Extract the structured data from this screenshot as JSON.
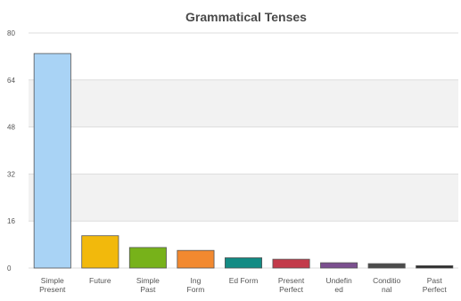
{
  "chart_data": {
    "type": "bar",
    "title": "Grammatical Tenses",
    "xlabel": "",
    "ylabel": "",
    "categories": [
      "Simple Present",
      "Future",
      "Simple Past",
      "Ing Form",
      "Ed Form",
      "Present Perfect",
      "Undefined",
      "Conditional",
      "Past Perfect"
    ],
    "category_label_lines": [
      [
        "Simple",
        "Present"
      ],
      [
        "Future"
      ],
      [
        "Simple",
        "Past"
      ],
      [
        "Ing",
        "Form"
      ],
      [
        "Ed Form"
      ],
      [
        "Present",
        "Perfect"
      ],
      [
        "Undefin",
        "ed"
      ],
      [
        "Conditio",
        "nal"
      ],
      [
        "Past",
        "Perfect"
      ]
    ],
    "values": [
      73,
      11,
      7,
      6,
      3.5,
      3,
      1.8,
      1.5,
      0.8
    ],
    "ylim": [
      0,
      80
    ],
    "yticks": [
      0,
      16,
      32,
      48,
      64,
      80
    ],
    "ytick_labels": [
      "0",
      "16",
      "32",
      "48",
      "64",
      "80"
    ],
    "grid": true,
    "legend": "none",
    "colors": [
      "#a9d3f5",
      "#f2b90c",
      "#77b21a",
      "#f2892f",
      "#138b84",
      "#c33a4a",
      "#7b4f8f",
      "#4b4b4b",
      "#2d2d2d"
    ],
    "band_color": "#f2f2f2",
    "grid_color": "#dddddd",
    "title_color": "#4a4a4a",
    "axis_text_color": "#555555"
  }
}
